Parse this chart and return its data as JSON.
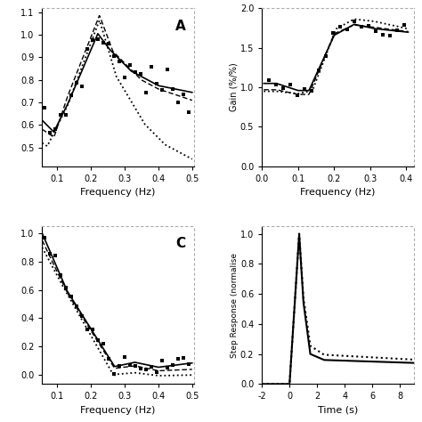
{
  "fig_bg": "#ffffff",
  "subplot_bg": "#ffffff",
  "panel_A_label": "A",
  "panel_C_label": "C",
  "coherence_xlabel": "Frequency (Hz)",
  "gain_ylabel": "Gain (%/%)",
  "gain_xlabel": "Frequency (Hz)",
  "step_ylabel": "Step Response (normalise",
  "step_xlabel": "Time (s)",
  "coh_xlim": [
    0.055,
    0.505
  ],
  "coh_xticks": [
    0.1,
    0.2,
    0.3,
    0.4,
    0.5
  ],
  "gain_xlim": [
    0.0,
    0.42
  ],
  "gain_xticks": [
    0.0,
    0.1,
    0.2,
    0.3,
    0.4
  ],
  "gain_ylim": [
    0.0,
    2.0
  ],
  "gain_yticks": [
    0.0,
    0.5,
    1.0,
    1.5,
    2.0
  ],
  "phase_xlim": [
    0.055,
    0.505
  ],
  "phase_xticks": [
    0.1,
    0.2,
    0.3,
    0.4,
    0.5
  ],
  "step_xlim": [
    -2,
    9
  ],
  "step_xticks": [
    -2,
    0,
    2,
    4,
    6,
    8
  ],
  "step_ylim": [
    0.0,
    1.05
  ],
  "step_yticks": [
    0.0,
    0.2,
    0.4,
    0.6,
    0.8,
    1.0
  ]
}
